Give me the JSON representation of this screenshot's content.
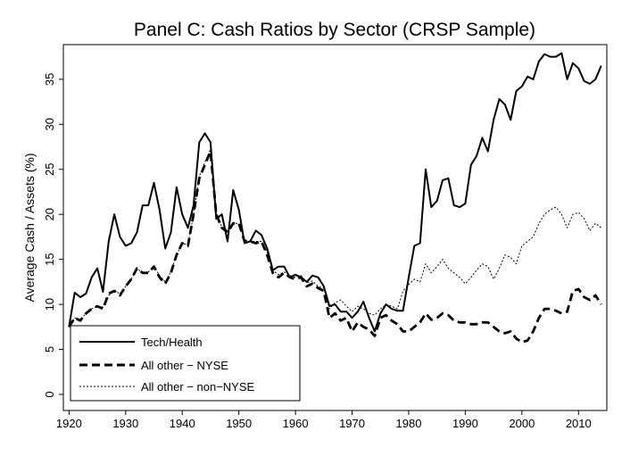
{
  "chart_data": {
    "type": "line",
    "title": "Panel C: Cash Ratios by Sector (CRSP Sample)",
    "xlabel": "",
    "ylabel": "Average Cash / Assets (%)",
    "xlim": [
      1919,
      2015
    ],
    "ylim": [
      0,
      38
    ],
    "xticks": [
      1920,
      1930,
      1940,
      1950,
      1960,
      1970,
      1980,
      1990,
      2000,
      2010
    ],
    "yticks": [
      0,
      5,
      10,
      15,
      20,
      25,
      30,
      35
    ],
    "grid": false,
    "legend_position": "bottom-left",
    "series": [
      {
        "name": "Tech/Health",
        "style": "solid",
        "points": [
          [
            1920,
            7.5
          ],
          [
            1921,
            11.3
          ],
          [
            1922,
            10.8
          ],
          [
            1923,
            11.2
          ],
          [
            1924,
            13.0
          ],
          [
            1925,
            14.0
          ],
          [
            1926,
            11.4
          ],
          [
            1927,
            17.0
          ],
          [
            1928,
            20.0
          ],
          [
            1929,
            17.5
          ],
          [
            1930,
            16.5
          ],
          [
            1931,
            16.8
          ],
          [
            1932,
            18.0
          ],
          [
            1933,
            21.0
          ],
          [
            1934,
            21.0
          ],
          [
            1935,
            23.5
          ],
          [
            1936,
            20.5
          ],
          [
            1937,
            16.2
          ],
          [
            1938,
            18.0
          ],
          [
            1939,
            23.0
          ],
          [
            1940,
            20.0
          ],
          [
            1941,
            18.5
          ],
          [
            1942,
            21.0
          ],
          [
            1943,
            28.0
          ],
          [
            1944,
            29.0
          ],
          [
            1945,
            28.0
          ],
          [
            1946,
            19.5
          ],
          [
            1947,
            20.0
          ],
          [
            1948,
            17.0
          ],
          [
            1949,
            22.7
          ],
          [
            1950,
            20.5
          ],
          [
            1951,
            16.8
          ],
          [
            1952,
            17.0
          ],
          [
            1953,
            18.2
          ],
          [
            1954,
            17.7
          ],
          [
            1955,
            16.2
          ],
          [
            1956,
            13.8
          ],
          [
            1957,
            14.2
          ],
          [
            1958,
            14.2
          ],
          [
            1959,
            13.0
          ],
          [
            1960,
            13.3
          ],
          [
            1961,
            13.0
          ],
          [
            1962,
            12.5
          ],
          [
            1963,
            13.2
          ],
          [
            1964,
            13.0
          ],
          [
            1965,
            12.0
          ],
          [
            1966,
            9.8
          ],
          [
            1967,
            10.0
          ],
          [
            1968,
            9.2
          ],
          [
            1969,
            9.2
          ],
          [
            1970,
            8.5
          ],
          [
            1971,
            9.2
          ],
          [
            1972,
            10.3
          ],
          [
            1973,
            8.5
          ],
          [
            1974,
            7.0
          ],
          [
            1975,
            9.0
          ],
          [
            1976,
            10.0
          ],
          [
            1977,
            9.5
          ],
          [
            1978,
            9.3
          ],
          [
            1979,
            9.3
          ],
          [
            1980,
            13.0
          ],
          [
            1981,
            16.5
          ],
          [
            1982,
            16.8
          ],
          [
            1983,
            25.0
          ],
          [
            1984,
            20.8
          ],
          [
            1985,
            21.5
          ],
          [
            1986,
            23.8
          ],
          [
            1987,
            24.0
          ],
          [
            1988,
            21.0
          ],
          [
            1989,
            20.8
          ],
          [
            1990,
            21.2
          ],
          [
            1991,
            25.5
          ],
          [
            1992,
            26.5
          ],
          [
            1993,
            28.5
          ],
          [
            1994,
            27.0
          ],
          [
            1995,
            30.5
          ],
          [
            1996,
            32.8
          ],
          [
            1997,
            32.2
          ],
          [
            1998,
            30.5
          ],
          [
            1999,
            33.7
          ],
          [
            2000,
            34.2
          ],
          [
            2001,
            35.3
          ],
          [
            2002,
            35.0
          ],
          [
            2003,
            37.0
          ],
          [
            2004,
            37.8
          ],
          [
            2005,
            37.5
          ],
          [
            2006,
            37.5
          ],
          [
            2007,
            37.9
          ],
          [
            2008,
            35.0
          ],
          [
            2009,
            36.8
          ],
          [
            2010,
            36.2
          ],
          [
            2011,
            34.8
          ],
          [
            2012,
            34.5
          ],
          [
            2013,
            35.0
          ],
          [
            2014,
            36.5
          ]
        ]
      },
      {
        "name": "All other − NYSE",
        "style": "dashed",
        "points": [
          [
            1920,
            7.5
          ],
          [
            1921,
            8.5
          ],
          [
            1922,
            8.2
          ],
          [
            1923,
            9.0
          ],
          [
            1924,
            9.5
          ],
          [
            1925,
            9.8
          ],
          [
            1926,
            9.5
          ],
          [
            1927,
            11.2
          ],
          [
            1928,
            11.5
          ],
          [
            1929,
            11.0
          ],
          [
            1930,
            12.0
          ],
          [
            1931,
            12.8
          ],
          [
            1932,
            14.0
          ],
          [
            1933,
            13.5
          ],
          [
            1934,
            13.5
          ],
          [
            1935,
            14.2
          ],
          [
            1936,
            13.0
          ],
          [
            1937,
            12.3
          ],
          [
            1938,
            13.5
          ],
          [
            1939,
            15.5
          ],
          [
            1940,
            16.8
          ],
          [
            1941,
            16.5
          ],
          [
            1942,
            20.0
          ],
          [
            1943,
            24.0
          ],
          [
            1944,
            25.5
          ],
          [
            1945,
            27.0
          ],
          [
            1946,
            20.0
          ],
          [
            1947,
            18.5
          ],
          [
            1948,
            18.0
          ],
          [
            1949,
            19.0
          ],
          [
            1950,
            19.0
          ],
          [
            1951,
            17.0
          ],
          [
            1952,
            17.0
          ],
          [
            1953,
            16.8
          ],
          [
            1954,
            17.0
          ],
          [
            1955,
            15.5
          ],
          [
            1956,
            13.5
          ],
          [
            1957,
            13.0
          ],
          [
            1958,
            13.5
          ],
          [
            1959,
            13.0
          ],
          [
            1960,
            12.8
          ],
          [
            1961,
            13.0
          ],
          [
            1962,
            12.0
          ],
          [
            1963,
            12.3
          ],
          [
            1964,
            11.8
          ],
          [
            1965,
            11.5
          ],
          [
            1966,
            8.5
          ],
          [
            1967,
            9.0
          ],
          [
            1968,
            8.2
          ],
          [
            1969,
            8.5
          ],
          [
            1970,
            7.0
          ],
          [
            1971,
            8.0
          ],
          [
            1972,
            7.5
          ],
          [
            1973,
            7.2
          ],
          [
            1974,
            6.5
          ],
          [
            1975,
            8.5
          ],
          [
            1976,
            8.8
          ],
          [
            1977,
            8.2
          ],
          [
            1978,
            7.8
          ],
          [
            1979,
            7.0
          ],
          [
            1980,
            7.0
          ],
          [
            1981,
            7.5
          ],
          [
            1982,
            8.0
          ],
          [
            1983,
            9.0
          ],
          [
            1984,
            8.3
          ],
          [
            1985,
            8.5
          ],
          [
            1986,
            9.0
          ],
          [
            1987,
            8.8
          ],
          [
            1988,
            8.2
          ],
          [
            1989,
            8.0
          ],
          [
            1990,
            8.0
          ],
          [
            1991,
            7.8
          ],
          [
            1992,
            7.8
          ],
          [
            1993,
            8.0
          ],
          [
            1994,
            8.0
          ],
          [
            1995,
            7.5
          ],
          [
            1996,
            7.0
          ],
          [
            1997,
            6.8
          ],
          [
            1998,
            7.0
          ],
          [
            1999,
            6.2
          ],
          [
            2000,
            5.8
          ],
          [
            2001,
            6.0
          ],
          [
            2002,
            7.0
          ],
          [
            2003,
            8.5
          ],
          [
            2004,
            9.5
          ],
          [
            2005,
            9.5
          ],
          [
            2006,
            9.3
          ],
          [
            2007,
            9.0
          ],
          [
            2008,
            9.2
          ],
          [
            2009,
            11.5
          ],
          [
            2010,
            11.7
          ],
          [
            2011,
            10.8
          ],
          [
            2012,
            10.5
          ],
          [
            2013,
            11.0
          ],
          [
            2014,
            10.0
          ]
        ]
      },
      {
        "name": "All other − non−NYSE",
        "style": "dotted",
        "points": [
          [
            1920,
            7.5
          ],
          [
            1921,
            8.5
          ],
          [
            1922,
            8.3
          ],
          [
            1923,
            9.0
          ],
          [
            1924,
            9.5
          ],
          [
            1925,
            9.8
          ],
          [
            1926,
            9.7
          ],
          [
            1927,
            11.0
          ],
          [
            1928,
            11.5
          ],
          [
            1929,
            11.2
          ],
          [
            1930,
            12.0
          ],
          [
            1931,
            12.8
          ],
          [
            1932,
            14.0
          ],
          [
            1933,
            13.5
          ],
          [
            1934,
            13.6
          ],
          [
            1935,
            14.2
          ],
          [
            1936,
            13.2
          ],
          [
            1937,
            12.5
          ],
          [
            1938,
            13.6
          ],
          [
            1939,
            15.5
          ],
          [
            1940,
            16.8
          ],
          [
            1941,
            16.6
          ],
          [
            1942,
            20.0
          ],
          [
            1943,
            24.2
          ],
          [
            1944,
            25.8
          ],
          [
            1945,
            27.2
          ],
          [
            1946,
            20.2
          ],
          [
            1947,
            18.6
          ],
          [
            1948,
            18.2
          ],
          [
            1949,
            19.0
          ],
          [
            1950,
            19.0
          ],
          [
            1951,
            17.2
          ],
          [
            1952,
            17.0
          ],
          [
            1953,
            17.0
          ],
          [
            1954,
            17.0
          ],
          [
            1955,
            15.8
          ],
          [
            1956,
            13.8
          ],
          [
            1957,
            13.3
          ],
          [
            1958,
            13.6
          ],
          [
            1959,
            13.2
          ],
          [
            1960,
            13.0
          ],
          [
            1961,
            13.2
          ],
          [
            1962,
            12.4
          ],
          [
            1963,
            12.6
          ],
          [
            1964,
            12.0
          ],
          [
            1965,
            11.8
          ],
          [
            1966,
            9.5
          ],
          [
            1967,
            10.2
          ],
          [
            1968,
            10.5
          ],
          [
            1969,
            9.8
          ],
          [
            1970,
            9.2
          ],
          [
            1971,
            9.8
          ],
          [
            1972,
            9.5
          ],
          [
            1973,
            9.0
          ],
          [
            1974,
            8.8
          ],
          [
            1975,
            9.5
          ],
          [
            1976,
            10.0
          ],
          [
            1977,
            9.8
          ],
          [
            1978,
            9.5
          ],
          [
            1979,
            11.5
          ],
          [
            1980,
            12.2
          ],
          [
            1981,
            12.8
          ],
          [
            1982,
            12.5
          ],
          [
            1983,
            14.5
          ],
          [
            1984,
            13.5
          ],
          [
            1985,
            14.2
          ],
          [
            1986,
            15.0
          ],
          [
            1987,
            14.0
          ],
          [
            1988,
            13.5
          ],
          [
            1989,
            13.0
          ],
          [
            1990,
            12.3
          ],
          [
            1991,
            13.0
          ],
          [
            1992,
            13.8
          ],
          [
            1993,
            14.5
          ],
          [
            1994,
            14.2
          ],
          [
            1995,
            12.8
          ],
          [
            1996,
            14.0
          ],
          [
            1997,
            15.5
          ],
          [
            1998,
            15.2
          ],
          [
            1999,
            14.5
          ],
          [
            2000,
            16.5
          ],
          [
            2001,
            17.0
          ],
          [
            2002,
            17.5
          ],
          [
            2003,
            19.0
          ],
          [
            2004,
            20.0
          ],
          [
            2005,
            20.5
          ],
          [
            2006,
            20.8
          ],
          [
            2007,
            20.0
          ],
          [
            2008,
            18.5
          ],
          [
            2009,
            20.0
          ],
          [
            2010,
            20.2
          ],
          [
            2011,
            19.5
          ],
          [
            2012,
            18.2
          ],
          [
            2013,
            19.0
          ],
          [
            2014,
            18.5
          ]
        ]
      }
    ]
  }
}
